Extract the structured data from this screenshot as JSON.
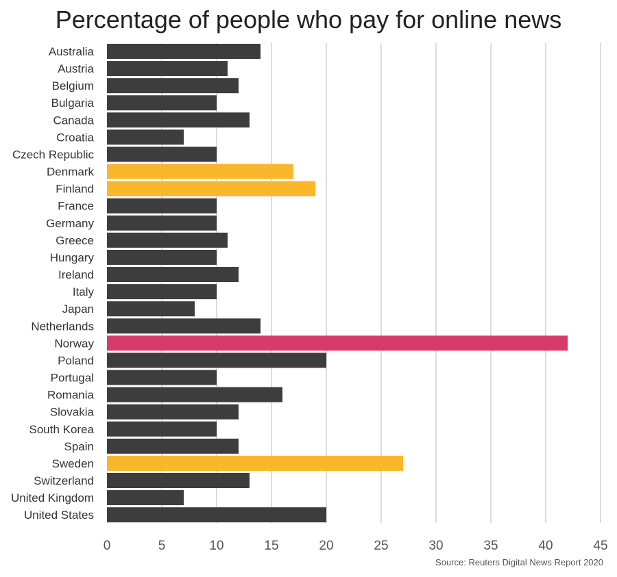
{
  "chart_data": {
    "type": "bar",
    "orientation": "horizontal",
    "title": "Percentage of people who pay for online news",
    "source": "Source: Reuters Digital News Report 2020",
    "categories": [
      "Australia",
      "Austria",
      "Belgium",
      "Bulgaria",
      "Canada",
      "Croatia",
      "Czech Republic",
      "Denmark",
      "Finland",
      "France",
      "Germany",
      "Greece",
      "Hungary",
      "Ireland",
      "Italy",
      "Japan",
      "Netherlands",
      "Norway",
      "Poland",
      "Portugal",
      "Romania",
      "Slovakia",
      "South Korea",
      "Spain",
      "Sweden",
      "Switzerland",
      "United Kingdom",
      "United States"
    ],
    "values": [
      14,
      11,
      12,
      10,
      13,
      7,
      10,
      17,
      19,
      10,
      10,
      11,
      10,
      12,
      10,
      8,
      14,
      42,
      20,
      10,
      16,
      12,
      10,
      12,
      27,
      13,
      7,
      20
    ],
    "highlight": {
      "Denmark": "#fbb72b",
      "Finland": "#fbb72b",
      "Sweden": "#fbb72b",
      "Norway": "#d93a6c"
    },
    "default_color": "#3d3d3d",
    "xlim": [
      0,
      45
    ],
    "xticks": [
      0,
      5,
      10,
      15,
      20,
      25,
      30,
      35,
      40,
      45
    ],
    "grid": true
  }
}
